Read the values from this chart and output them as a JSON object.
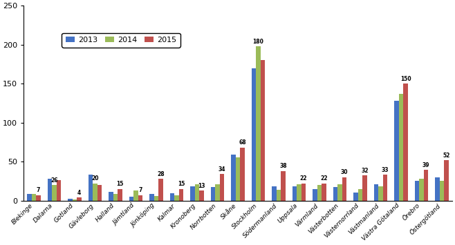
{
  "categories": [
    "Blekinge",
    "Dalarna",
    "Gotland",
    "Gävleborg",
    "Halland",
    "Jämtland",
    "Jönköping",
    "Kalmar",
    "Kronoberg",
    "Norrbotten",
    "Skåne",
    "Stockholm",
    "Södermanland",
    "Uppsala",
    "Värmland",
    "Västerbotten",
    "Västernorrland",
    "Västmanland",
    "Västra Götaland",
    "Örebro",
    "Östergötland"
  ],
  "values_2013": [
    8,
    28,
    2,
    33,
    11,
    5,
    8,
    9,
    18,
    17,
    59,
    170,
    18,
    18,
    15,
    17,
    10,
    21,
    128,
    25,
    30
  ],
  "values_2014": [
    8,
    20,
    1,
    22,
    8,
    13,
    6,
    7,
    21,
    21,
    55,
    198,
    14,
    21,
    20,
    21,
    15,
    18,
    137,
    28,
    25
  ],
  "values_2015": [
    7,
    26,
    4,
    20,
    15,
    7,
    28,
    15,
    13,
    34,
    68,
    180,
    38,
    22,
    22,
    30,
    32,
    33,
    150,
    39,
    52
  ],
  "ann_positions": {
    "Blekinge": {
      "bar": 2,
      "val": 7
    },
    "Dalarna": {
      "bar": 1,
      "val": 26
    },
    "Gotland": {
      "bar": 2,
      "val": 4
    },
    "Gävleborg": {
      "bar": 1,
      "val": 20
    },
    "Halland": {
      "bar": 2,
      "val": 15
    },
    "Jämtland": {
      "bar": 2,
      "val": 7
    },
    "Jönköping": {
      "bar": 2,
      "val": 28
    },
    "Kalmar": {
      "bar": 2,
      "val": 15
    },
    "Kronoberg": {
      "bar": 2,
      "val": 13
    },
    "Norrbotten": {
      "bar": 2,
      "val": 34
    },
    "Skåne": {
      "bar": 2,
      "val": 68
    },
    "Stockholm": {
      "bar": 1,
      "val": 180
    },
    "Södermanland": {
      "bar": 2,
      "val": 38
    },
    "Uppsala": {
      "bar": 2,
      "val": 22
    },
    "Värmland": {
      "bar": 2,
      "val": 22
    },
    "Västerbotten": {
      "bar": 2,
      "val": 30
    },
    "Västernorrland": {
      "bar": 2,
      "val": 32
    },
    "Västmanland": {
      "bar": 2,
      "val": 33
    },
    "Västra Götaland": {
      "bar": 2,
      "val": 150
    },
    "Örebro": {
      "bar": 2,
      "val": 39
    },
    "Östergötland": {
      "bar": 2,
      "val": 52
    }
  },
  "color_2013": "#4472C4",
  "color_2014": "#9BBB59",
  "color_2015": "#C0504D",
  "ylim": [
    0,
    250
  ],
  "yticks": [
    0,
    50,
    100,
    150,
    200,
    250
  ],
  "legend_labels": [
    "2013",
    "2014",
    "2015"
  ],
  "bar_width": 0.22
}
